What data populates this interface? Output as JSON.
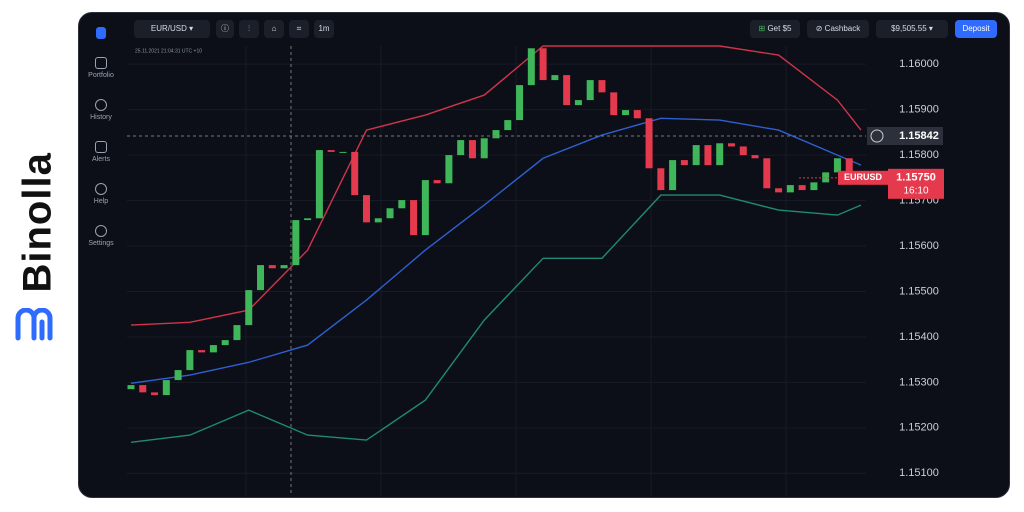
{
  "brand": "Binolla",
  "sidebar": [
    "Portfolio",
    "History",
    "Alerts",
    "Help",
    "Settings"
  ],
  "toolbar": {
    "pair": "EUR/USD",
    "timeframe": "1m",
    "bonus": "Get $5",
    "cashback": "Cashback",
    "balance": "$9,505.55",
    "deposit": "Deposit"
  },
  "chart": {
    "info": "25.11.2021 21:04:31 UTC +10",
    "ylim": [
      1.1505,
      1.1604
    ],
    "yticks": [
      {
        "value": 1.16,
        "label": "1.16000"
      },
      {
        "value": 1.159,
        "label": "1.15900"
      },
      {
        "value": 1.158,
        "label": "1.15800"
      },
      {
        "value": 1.157,
        "label": "1.15700"
      },
      {
        "value": 1.156,
        "label": "1.15600"
      },
      {
        "value": 1.155,
        "label": "1.15500"
      },
      {
        "value": 1.154,
        "label": "1.15400"
      },
      {
        "value": 1.153,
        "label": "1.15300"
      },
      {
        "value": 1.152,
        "label": "1.15200"
      },
      {
        "value": 1.151,
        "label": "1.15100"
      }
    ],
    "open": 1.15285,
    "closes": [
      1.15294,
      1.15278,
      1.15272,
      1.15305,
      1.15327,
      1.15371,
      1.15366,
      1.15382,
      1.15393,
      1.15426,
      1.15503,
      1.15558,
      1.15551,
      1.15558,
      1.15657,
      1.15661,
      1.15811,
      1.15807,
      1.15807,
      1.15712,
      1.15652,
      1.15661,
      1.15683,
      1.15701,
      1.15624,
      1.15745,
      1.15738,
      1.158,
      1.15833,
      1.15793,
      1.15837,
      1.15855,
      1.15877,
      1.15954,
      1.16035,
      1.15965,
      1.15976,
      1.1591,
      1.15921,
      1.15965,
      1.15938,
      1.15888,
      1.15899,
      1.15881,
      1.15771,
      1.15723,
      1.15789,
      1.15778,
      1.15822,
      1.15778,
      1.15826,
      1.15819,
      1.158,
      1.15793,
      1.15727,
      1.15718,
      1.15734,
      1.15723,
      1.1574,
      1.15762,
      1.15793,
      1.15756,
      1.15751
    ],
    "band_index": [
      0,
      5,
      10,
      15,
      20,
      25,
      30,
      35,
      40,
      45,
      50,
      55,
      60,
      62
    ],
    "upper": [
      1.15426,
      1.15432,
      1.15459,
      1.15591,
      1.15855,
      1.15888,
      1.15932,
      1.1604,
      1.1604,
      1.1604,
      1.1604,
      1.1602,
      1.15921,
      1.15855
    ],
    "middle": [
      1.15298,
      1.15316,
      1.15344,
      1.15382,
      1.15481,
      1.15591,
      1.1569,
      1.15793,
      1.15844,
      1.15881,
      1.15877,
      1.15855,
      1.158,
      1.15778
    ],
    "lower": [
      1.15168,
      1.15184,
      1.15239,
      1.15184,
      1.15173,
      1.15261,
      1.15437,
      1.15573,
      1.15573,
      1.15712,
      1.15712,
      1.15679,
      1.15668,
      1.1569
    ],
    "crosshair": 1.15842,
    "symbol": "EURUSD",
    "current": {
      "value": 1.1575,
      "label": "1.15750"
    },
    "timer": "16:10",
    "colors": {
      "up": "#3fb65a",
      "down": "#e5394d",
      "upper": "#d0344a",
      "middle": "#2f5fd0",
      "lower": "#1f8a76"
    }
  }
}
